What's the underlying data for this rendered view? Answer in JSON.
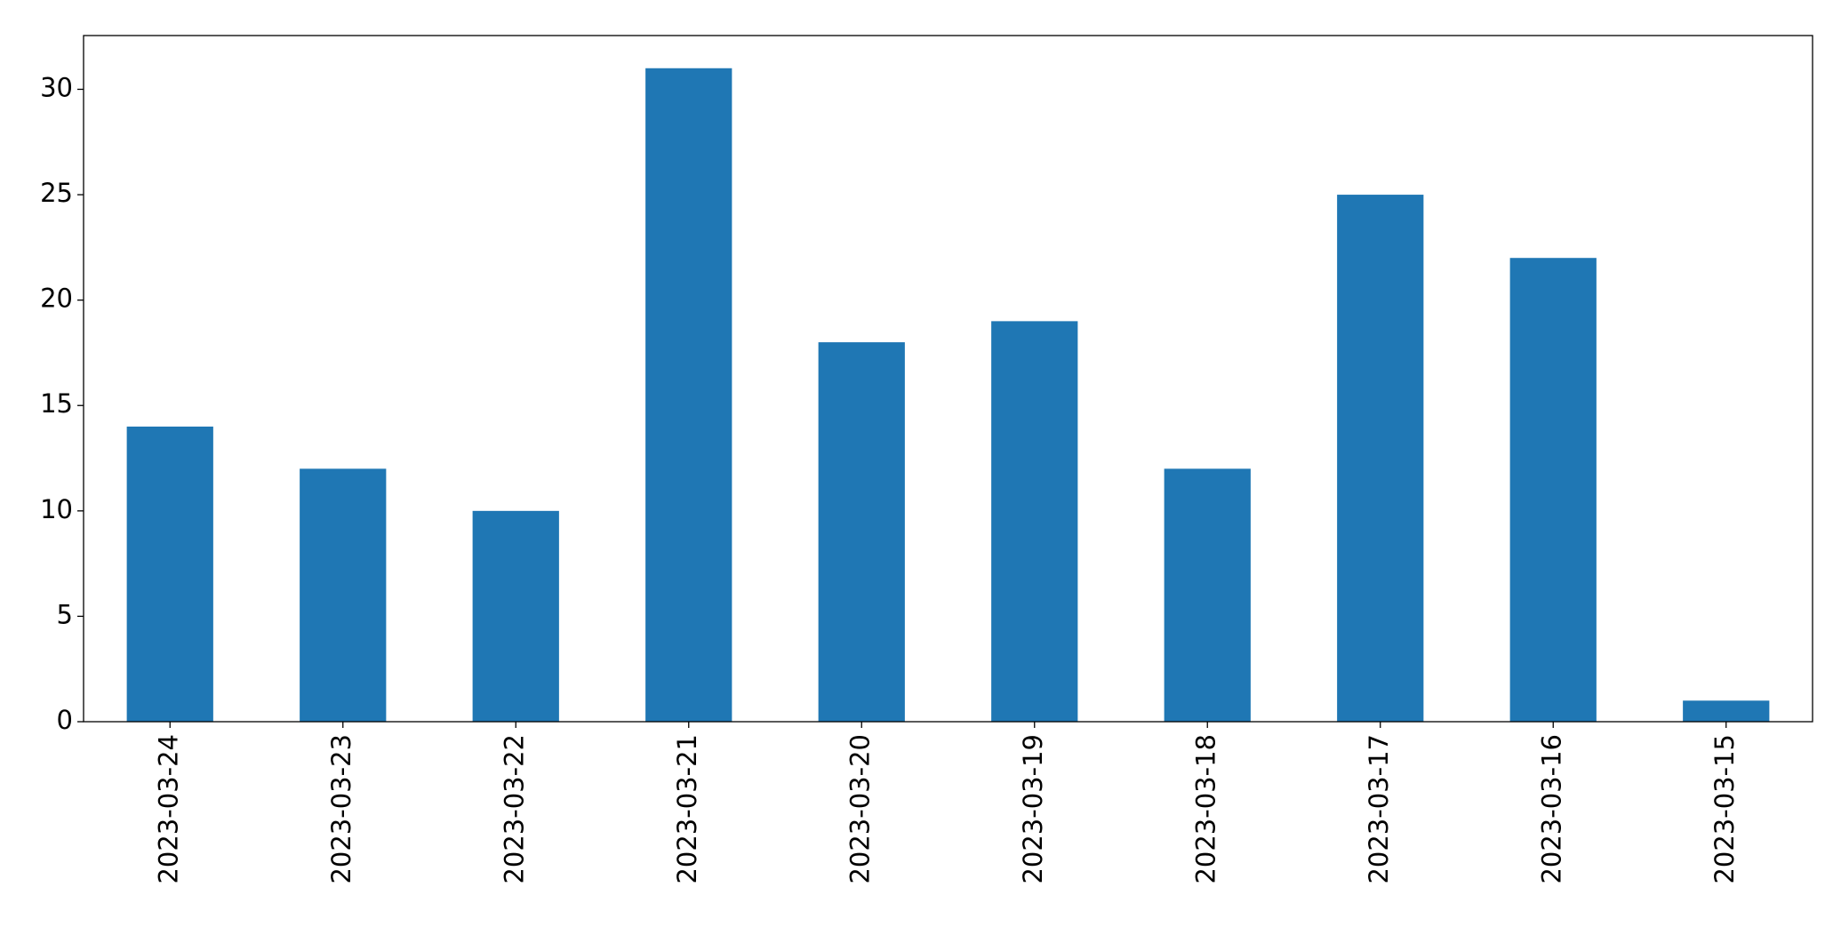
{
  "chart_data": {
    "type": "bar",
    "categories": [
      "2023-03-24",
      "2023-03-23",
      "2023-03-22",
      "2023-03-21",
      "2023-03-20",
      "2023-03-19",
      "2023-03-18",
      "2023-03-17",
      "2023-03-16",
      "2023-03-15"
    ],
    "values": [
      14,
      12,
      10,
      31,
      18,
      19,
      12,
      25,
      22,
      1
    ],
    "color": "#1f77b4",
    "ylim": [
      0,
      32.55
    ],
    "yticks": [
      0,
      5,
      10,
      15,
      20,
      25,
      30
    ],
    "grid": false
  }
}
